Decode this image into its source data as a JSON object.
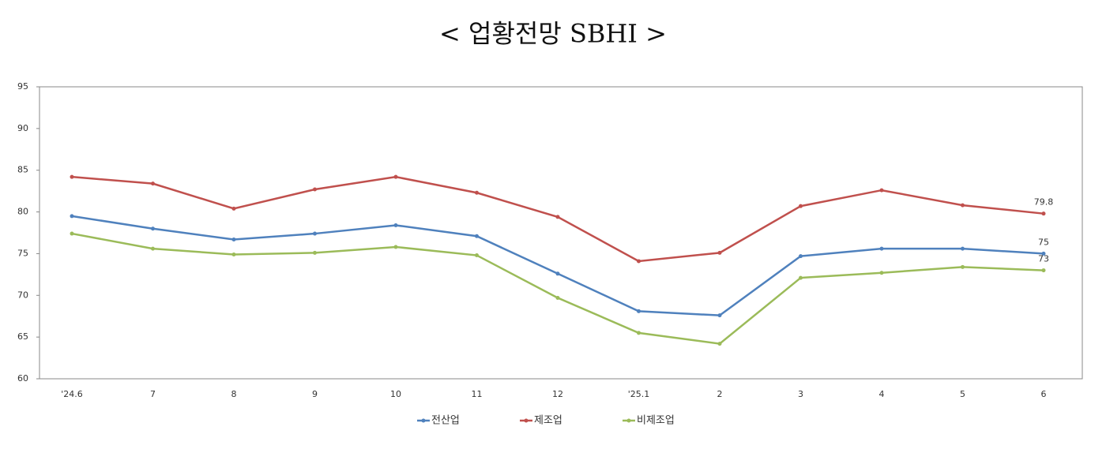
{
  "chart_data": {
    "type": "line",
    "title": "< 업황전망 SBHI >",
    "categories": [
      "'24.6",
      "7",
      "8",
      "9",
      "10",
      "11",
      "12",
      "'25.1",
      "2",
      "3",
      "4",
      "5",
      "6"
    ],
    "series": [
      {
        "name": "전산업",
        "color": "#4f81bd",
        "values": [
          79.5,
          78.0,
          76.7,
          77.4,
          78.4,
          77.1,
          72.6,
          68.1,
          67.6,
          74.7,
          75.6,
          75.6,
          75
        ]
      },
      {
        "name": "제조업",
        "color": "#c0504d",
        "values": [
          84.2,
          83.4,
          80.4,
          82.7,
          84.2,
          82.3,
          79.4,
          74.1,
          75.1,
          80.7,
          82.6,
          80.8,
          79.8
        ]
      },
      {
        "name": "비제조업",
        "color": "#9bbb59",
        "values": [
          77.4,
          75.6,
          74.9,
          75.1,
          75.8,
          74.8,
          69.7,
          65.5,
          64.2,
          72.1,
          72.7,
          73.4,
          73
        ]
      }
    ],
    "ylim": [
      60,
      95
    ],
    "yticks": [
      60,
      65,
      70,
      75,
      80,
      85,
      90,
      95
    ],
    "grid": false,
    "last_value_labels": true,
    "legend": "bottom"
  }
}
